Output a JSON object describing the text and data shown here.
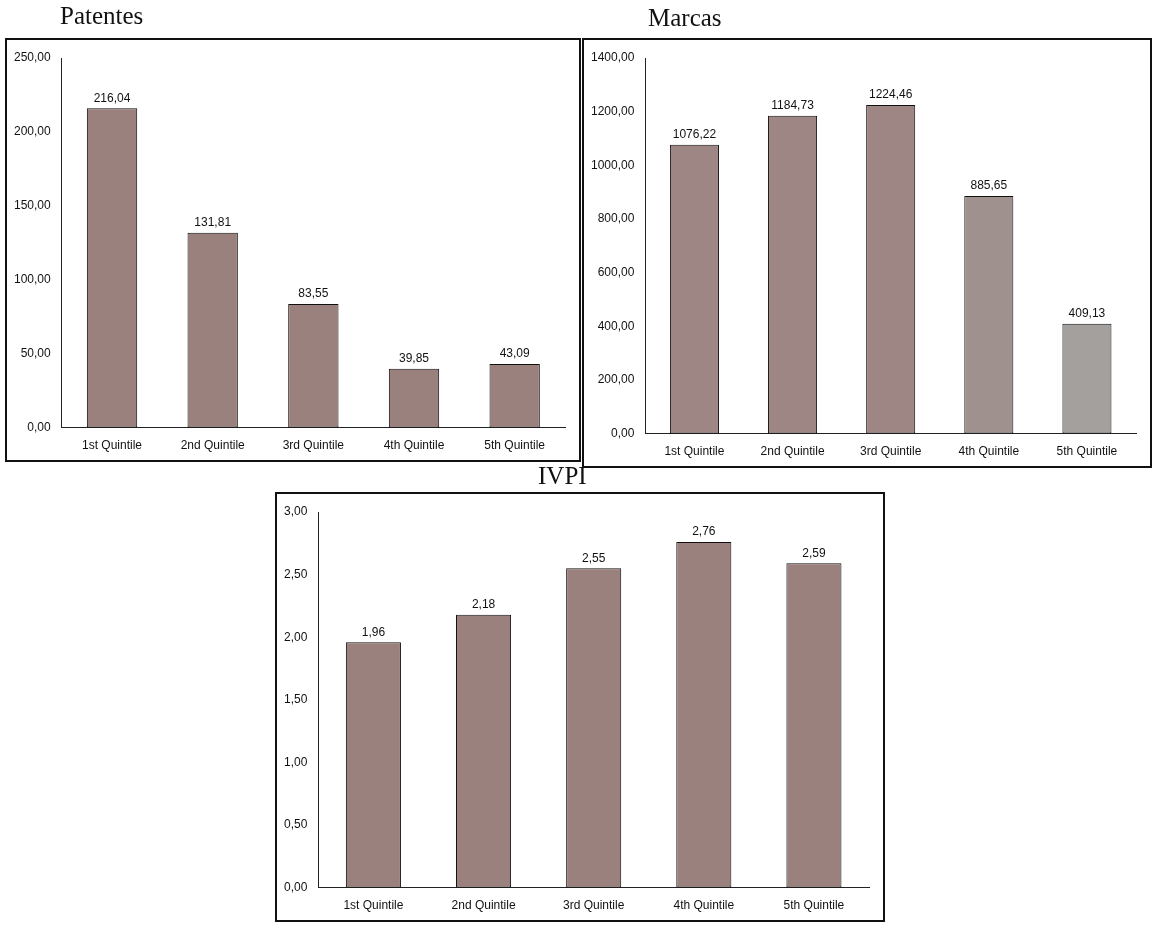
{
  "chart_data": [
    {
      "type": "bar",
      "title": "Patentes",
      "categories": [
        "1st Quintile",
        "2nd Quintile",
        "3rd Quintile",
        "4th Quintile",
        "5th Quintile"
      ],
      "values": [
        216.04,
        131.81,
        83.55,
        39.85,
        43.09
      ],
      "value_labels": [
        "216,04",
        "131,81",
        "83,55",
        "39,85",
        "43,09"
      ],
      "colors": [
        "#9b817d",
        "#9b817d",
        "#9b817d",
        "#9b817d",
        "#9b817d"
      ],
      "ylim": [
        0,
        250
      ],
      "yticks": [
        {
          "value": 0,
          "label": "0,00"
        },
        {
          "value": 50,
          "label": "50,00"
        },
        {
          "value": 100,
          "label": "100,00"
        },
        {
          "value": 150,
          "label": "150,00"
        },
        {
          "value": 200,
          "label": "200,00"
        },
        {
          "value": 250,
          "label": "250,00"
        }
      ],
      "grid": false,
      "legend": false
    },
    {
      "type": "bar",
      "title": "Marcas",
      "categories": [
        "1st Quintile",
        "2nd Quintile",
        "3rd Quintile",
        "4th Quintile",
        "5th Quintile"
      ],
      "values": [
        1076.22,
        1184.73,
        1224.46,
        885.65,
        409.13
      ],
      "value_labels": [
        "1076,22",
        "1184,73",
        "1224,46",
        "885,65",
        "409,13"
      ],
      "colors": [
        "#9d8683",
        "#9d8683",
        "#9d8683",
        "#9e918e",
        "#a3a09e"
      ],
      "ylim": [
        0,
        1400
      ],
      "yticks": [
        {
          "value": 0,
          "label": "0,00"
        },
        {
          "value": 200,
          "label": "200,00"
        },
        {
          "value": 400,
          "label": "400,00"
        },
        {
          "value": 600,
          "label": "600,00"
        },
        {
          "value": 800,
          "label": "800,00"
        },
        {
          "value": 1000,
          "label": "1000,00"
        },
        {
          "value": 1200,
          "label": "1200,00"
        },
        {
          "value": 1400,
          "label": "1400,00"
        }
      ],
      "grid": false,
      "legend": false
    },
    {
      "type": "bar",
      "title": "IVPI",
      "categories": [
        "1st Quintile",
        "2nd Quintile",
        "3rd Quintile",
        "4th Quintile",
        "5th Quintile"
      ],
      "values": [
        1.96,
        2.18,
        2.55,
        2.76,
        2.59
      ],
      "value_labels": [
        "1,96",
        "2,18",
        "2,55",
        "2,76",
        "2,59"
      ],
      "colors": [
        "#9b817d",
        "#9b817d",
        "#9b817d",
        "#9b817d",
        "#9b817d"
      ],
      "ylim": [
        0,
        3
      ],
      "yticks": [
        {
          "value": 0,
          "label": "0,00"
        },
        {
          "value": 0.5,
          "label": "0,50"
        },
        {
          "value": 1,
          "label": "1,00"
        },
        {
          "value": 1.5,
          "label": "1,50"
        },
        {
          "value": 2,
          "label": "2,00"
        },
        {
          "value": 2.5,
          "label": "2,50"
        },
        {
          "value": 3,
          "label": "3,00"
        }
      ],
      "grid": false,
      "legend": false
    }
  ]
}
